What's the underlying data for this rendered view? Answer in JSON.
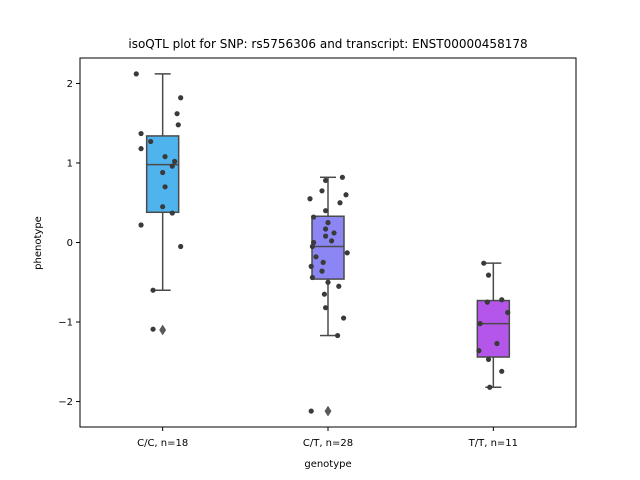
{
  "chart_data": {
    "type": "box",
    "title": "isoQTL plot for SNP: rs5756306 and transcript: ENST00000458178",
    "xlabel": "genotype",
    "ylabel": "phenotype",
    "ylim": [
      -2.32,
      2.32
    ],
    "yticks": [
      -2,
      -1,
      0,
      1,
      2
    ],
    "yticklabels": [
      "−2",
      "−1",
      "0",
      "1",
      "2"
    ],
    "grid": false,
    "colors": {
      "whisker": "#4a4a4a",
      "point": "#3a3a3a"
    },
    "groups": [
      {
        "label": "C/C, n=18",
        "color": "#4fb4ee",
        "box": {
          "q1": 0.38,
          "median": 0.98,
          "q3": 1.34,
          "whisker_low": -0.6,
          "whisker_high": 2.12
        },
        "outliers": [
          -1.1
        ],
        "points": [
          [
            -0.22,
            2.12
          ],
          [
            0.15,
            1.82
          ],
          [
            -0.18,
            1.37
          ],
          [
            0.12,
            1.62
          ],
          [
            0.13,
            1.48
          ],
          [
            -0.1,
            1.27
          ],
          [
            0.02,
            1.08
          ],
          [
            -0.18,
            1.18
          ],
          [
            0.1,
            1.02
          ],
          [
            0.08,
            0.96
          ],
          [
            0.0,
            0.88
          ],
          [
            0.02,
            0.7
          ],
          [
            0.0,
            0.45
          ],
          [
            0.08,
            0.37
          ],
          [
            -0.18,
            0.22
          ],
          [
            0.15,
            -0.05
          ],
          [
            -0.08,
            -0.6
          ],
          [
            -0.08,
            -1.09
          ]
        ]
      },
      {
        "label": "C/T, n=28",
        "color": "#8c86f4",
        "box": {
          "q1": -0.46,
          "median": -0.05,
          "q3": 0.33,
          "whisker_low": -1.17,
          "whisker_high": 0.82
        },
        "outliers": [
          -2.12
        ],
        "points": [
          [
            0.12,
            0.82
          ],
          [
            -0.02,
            0.78
          ],
          [
            -0.05,
            0.65
          ],
          [
            0.15,
            0.6
          ],
          [
            -0.15,
            0.55
          ],
          [
            0.1,
            0.5
          ],
          [
            -0.02,
            0.4
          ],
          [
            -0.12,
            0.32
          ],
          [
            0.0,
            0.25
          ],
          [
            -0.02,
            0.17
          ],
          [
            0.05,
            0.12
          ],
          [
            -0.02,
            0.08
          ],
          [
            0.03,
            0.02
          ],
          [
            -0.12,
            0.0
          ],
          [
            -0.13,
            -0.05
          ],
          [
            0.16,
            -0.13
          ],
          [
            -0.1,
            -0.18
          ],
          [
            -0.04,
            -0.25
          ],
          [
            -0.14,
            -0.3
          ],
          [
            -0.05,
            -0.36
          ],
          [
            -0.13,
            -0.44
          ],
          [
            0.0,
            -0.5
          ],
          [
            0.09,
            -0.55
          ],
          [
            -0.03,
            -0.65
          ],
          [
            -0.02,
            -0.82
          ],
          [
            0.13,
            -0.95
          ],
          [
            0.08,
            -1.17
          ],
          [
            -0.14,
            -2.12
          ]
        ]
      },
      {
        "label": "T/T, n=11",
        "color": "#b556ea",
        "box": {
          "q1": -1.44,
          "median": -1.02,
          "q3": -0.73,
          "whisker_low": -1.82,
          "whisker_high": -0.26
        },
        "outliers": [],
        "points": [
          [
            -0.08,
            -0.26
          ],
          [
            -0.04,
            -0.41
          ],
          [
            0.07,
            -0.72
          ],
          [
            -0.05,
            -0.75
          ],
          [
            0.12,
            -0.88
          ],
          [
            -0.11,
            -1.02
          ],
          [
            0.03,
            -1.27
          ],
          [
            -0.12,
            -1.36
          ],
          [
            -0.04,
            -1.47
          ],
          [
            0.07,
            -1.62
          ],
          [
            -0.03,
            -1.82
          ]
        ]
      }
    ]
  }
}
